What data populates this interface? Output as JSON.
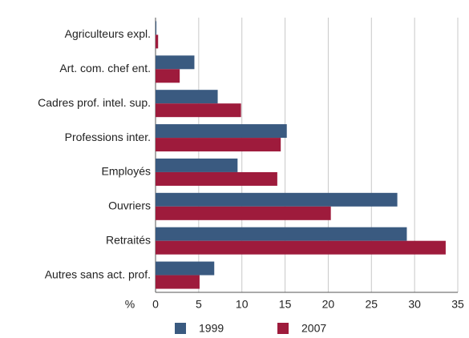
{
  "chart_data": {
    "type": "hbar",
    "categories": [
      "Agriculteurs expl.",
      "Art. com. chef ent.",
      "Cadres prof. intel. sup.",
      "Professions inter.",
      "Employés",
      "Ouvriers",
      "Retraités",
      "Autres sans act. prof."
    ],
    "series": [
      {
        "name": "1999",
        "color": "#3a5a80",
        "values": [
          0.1,
          4.5,
          7.2,
          15.2,
          9.5,
          28,
          29.1,
          6.8
        ]
      },
      {
        "name": "2007",
        "color": "#9e1b3c",
        "values": [
          0.3,
          2.8,
          9.9,
          14.5,
          14.1,
          20.3,
          33.6,
          5.1
        ]
      }
    ],
    "xlabel": "%",
    "xlim": [
      0,
      35
    ],
    "xticks": [
      0,
      5,
      10,
      15,
      20,
      25,
      30,
      35
    ],
    "grid": true,
    "legend": "bottom"
  }
}
